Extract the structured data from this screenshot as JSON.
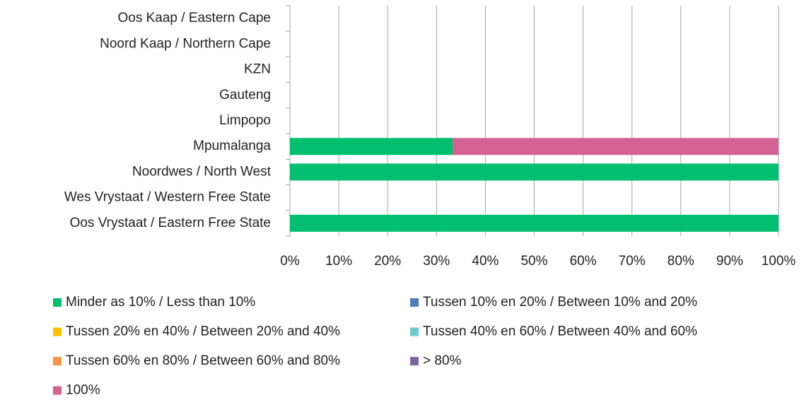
{
  "chart_data": {
    "type": "stacked_barh",
    "categories": [
      "Oos Vrystaat / Eastern Free State",
      "Wes Vrystaat / Western Free State",
      "Noordwes / North West",
      "Mpumalanga",
      "Limpopo",
      "Gauteng",
      "KZN",
      "Noord Kaap / Northern Cape",
      "Oos Kaap / Eastern Cape"
    ],
    "series": [
      {
        "name": "Minder as 10% / Less than 10%",
        "color": "#00c06f",
        "values": [
          100,
          0,
          100,
          33.3,
          0,
          0,
          0,
          0,
          0
        ]
      },
      {
        "name": "Tussen 10% en 20% / Between 10% and 20%",
        "color": "#4f7bb6",
        "values": [
          0,
          0,
          0,
          0,
          0,
          0,
          0,
          0,
          0
        ]
      },
      {
        "name": "Tussen 20% en 40% / Between 20% and 40%",
        "color": "#ffc000",
        "values": [
          0,
          0,
          0,
          0,
          0,
          0,
          0,
          0,
          0
        ]
      },
      {
        "name": "Tussen 40% en 60% / Between 40% and 60%",
        "color": "#6ccaca",
        "values": [
          0,
          0,
          0,
          0,
          0,
          0,
          0,
          0,
          0
        ]
      },
      {
        "name": "Tussen 60% en 80% / Between 60% and 80%",
        "color": "#f79646",
        "values": [
          0,
          0,
          0,
          0,
          0,
          0,
          0,
          0,
          0
        ]
      },
      {
        "name": "> 80%",
        "color": "#8064a2",
        "values": [
          0,
          0,
          0,
          0,
          0,
          0,
          0,
          0,
          0
        ]
      },
      {
        "name": "100%",
        "color": "#d36292",
        "values": [
          0,
          0,
          0,
          66.7,
          0,
          0,
          0,
          0,
          0
        ]
      }
    ],
    "xlim": [
      0,
      100
    ],
    "xticks": [
      {
        "value": 0,
        "label": "0%"
      },
      {
        "value": 10,
        "label": "10%"
      },
      {
        "value": 20,
        "label": "20%"
      },
      {
        "value": 30,
        "label": "30%"
      },
      {
        "value": 40,
        "label": "40%"
      },
      {
        "value": 50,
        "label": "50%"
      },
      {
        "value": 60,
        "label": "60%"
      },
      {
        "value": 70,
        "label": "70%"
      },
      {
        "value": 80,
        "label": "80%"
      },
      {
        "value": 90,
        "label": "90%"
      },
      {
        "value": 100,
        "label": "100%"
      }
    ],
    "grid": true
  }
}
